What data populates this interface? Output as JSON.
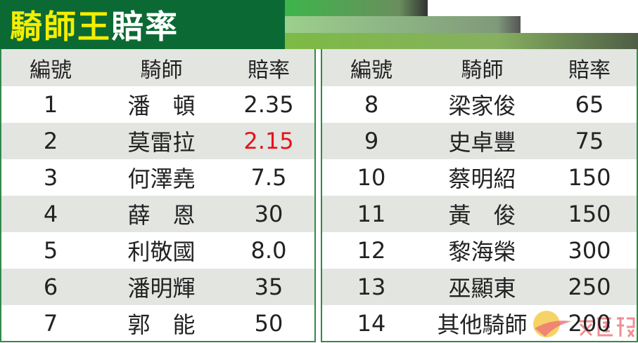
{
  "title": {
    "part1": "騎師王",
    "part2": "賠率"
  },
  "columns": [
    "編號",
    "騎師",
    "賠率"
  ],
  "left_rows": [
    {
      "no": "1",
      "jockey": "潘　頓",
      "odds": "2.35"
    },
    {
      "no": "2",
      "jockey": "莫雷拉",
      "odds": "2.15",
      "highlight": true
    },
    {
      "no": "3",
      "jockey": "何澤堯",
      "odds": "7.5"
    },
    {
      "no": "4",
      "jockey": "薛　恩",
      "odds": "30"
    },
    {
      "no": "5",
      "jockey": "利敬國",
      "odds": "8.0"
    },
    {
      "no": "6",
      "jockey": "潘明輝",
      "odds": "35"
    },
    {
      "no": "7",
      "jockey": "郭　能",
      "odds": "50"
    }
  ],
  "right_rows": [
    {
      "no": "8",
      "jockey": "梁家俊",
      "odds": "65"
    },
    {
      "no": "9",
      "jockey": "史卓豐",
      "odds": "75"
    },
    {
      "no": "10",
      "jockey": "蔡明紹",
      "odds": "150"
    },
    {
      "no": "11",
      "jockey": "黃　俊",
      "odds": "150"
    },
    {
      "no": "12",
      "jockey": "黎海榮",
      "odds": "300"
    },
    {
      "no": "13",
      "jockey": "巫顯東",
      "odds": "250"
    },
    {
      "no": "14",
      "jockey": "其他騎師",
      "odds": "200"
    }
  ],
  "colors": {
    "title_bg": "#0b6a34",
    "title_yellow": "#f4ee00",
    "header_bg": "#e3e5e1",
    "highlight": "#e3141b",
    "border": "#2f8a4a"
  },
  "watermark": "文匯報"
}
